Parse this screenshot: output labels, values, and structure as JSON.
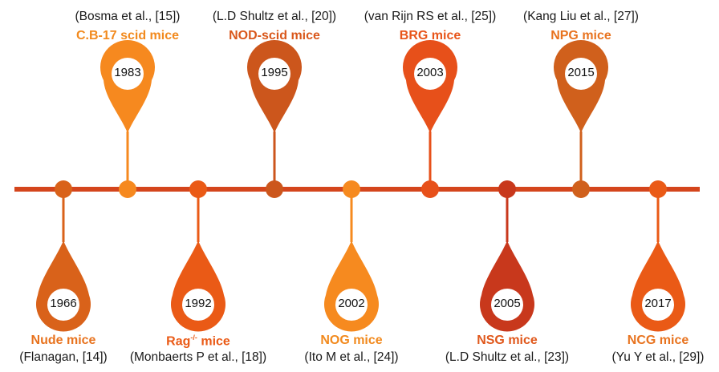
{
  "events": [
    {
      "year": "1966",
      "name": "Nude mice",
      "sup": "",
      "ref": "(Flanagan, [14])",
      "side": "bottom",
      "color": "#d9621a",
      "name_color": "#e8731f"
    },
    {
      "year": "1983",
      "name": "C.B-17 scid mice",
      "sup": "",
      "ref": "(Bosma et al., [15])",
      "side": "top",
      "color": "#f6891f",
      "name_color": "#f28a1e"
    },
    {
      "year": "1992",
      "name": "Rag",
      "sup": "-/-",
      "name_after": " mice",
      "ref": "(Monbaerts P et al., [18])",
      "side": "bottom",
      "color": "#ea5a16",
      "name_color": "#ea5a16"
    },
    {
      "year": "1995",
      "name": "NOD-scid mice",
      "sup": "",
      "ref": "(L.D Shultz et al., [20])",
      "side": "top",
      "color": "#cc561c",
      "name_color": "#d9581c"
    },
    {
      "year": "2002",
      "name": "NOG mice",
      "sup": "",
      "ref": "(Ito M et al., [24])",
      "side": "bottom",
      "color": "#f68a1f",
      "name_color": "#f28a1e"
    },
    {
      "year": "2003",
      "name": "BRG mice",
      "sup": "",
      "ref": "(van Rijn RS et al., [25])",
      "side": "top",
      "color": "#e7501a",
      "name_color": "#e8551a"
    },
    {
      "year": "2005",
      "name": "NSG mice",
      "sup": "",
      "ref": "(L.D Shultz et al., [23])",
      "side": "bottom",
      "color": "#c8381c",
      "name_color": "#e0581c"
    },
    {
      "year": "2015",
      "name": "NPG mice",
      "sup": "",
      "ref": "(Kang Liu et al., [27])",
      "side": "top",
      "color": "#d0601c",
      "name_color": "#e8731f"
    },
    {
      "year": "2017",
      "name": "NCG mice",
      "sup": "",
      "ref": "(Yu Y et al., [29])",
      "side": "bottom",
      "color": "#ea5a16",
      "name_color": "#e8731f"
    }
  ],
  "colors": {
    "axis": "#d4451c",
    "dot": "#c8511c"
  }
}
